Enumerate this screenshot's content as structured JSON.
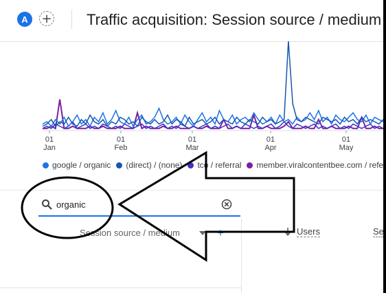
{
  "header": {
    "avatar_letter": "A",
    "add_comparison_symbol": "+",
    "title": "Traffic acquisition: Session source / medium"
  },
  "chart_data": {
    "type": "line",
    "x_ticks": [
      {
        "day": "01",
        "month": "Jan"
      },
      {
        "day": "01",
        "month": "Feb"
      },
      {
        "day": "01",
        "month": "Mar"
      },
      {
        "day": "01",
        "month": "Apr"
      },
      {
        "day": "01",
        "month": "May"
      }
    ],
    "series": [
      {
        "name": "google / organic",
        "color": "#1a73e8",
        "values": [
          3,
          4,
          2,
          5,
          3,
          6,
          2,
          4,
          7,
          3,
          5,
          2,
          6,
          4,
          8,
          3,
          5,
          9,
          4,
          3,
          6,
          2,
          5,
          7,
          3,
          4,
          6,
          10,
          5,
          3,
          4,
          6,
          3,
          7,
          4,
          2,
          5,
          8,
          4,
          6,
          3,
          9,
          5,
          4,
          7,
          3,
          5,
          6,
          4,
          8,
          5,
          3,
          4,
          6,
          3,
          7,
          4,
          5,
          3,
          6,
          4,
          5,
          8,
          5,
          9,
          4,
          6,
          3,
          7,
          5,
          4,
          6,
          8,
          5,
          4,
          7,
          3,
          6,
          5,
          4
        ]
      },
      {
        "name": "(direct) / (none)",
        "color": "#1557b0",
        "values": [
          2,
          3,
          5,
          2,
          4,
          3,
          6,
          3,
          2,
          5,
          3,
          7,
          4,
          3,
          5,
          2,
          4,
          3,
          6,
          5,
          3,
          4,
          2,
          6,
          4,
          3,
          5,
          3,
          4,
          7,
          3,
          5,
          4,
          2,
          6,
          3,
          4,
          5,
          3,
          4,
          6,
          3,
          5,
          4,
          3,
          6,
          4,
          3,
          5,
          4,
          3,
          6,
          4,
          5,
          3,
          4,
          5,
          40,
          12,
          5,
          4,
          6,
          5,
          4,
          3,
          6,
          5,
          4,
          5,
          3,
          6,
          4,
          5,
          3,
          6,
          4,
          5,
          4,
          3,
          5
        ]
      },
      {
        "name": "tco / referral",
        "color": "#3d33c4",
        "values": [
          1,
          2,
          1,
          3,
          2,
          1,
          2,
          4,
          1,
          2,
          3,
          1,
          2,
          1,
          3,
          2,
          1,
          2,
          1,
          3,
          2,
          1,
          2,
          3,
          1,
          2,
          1,
          2,
          3,
          1,
          2,
          1,
          3,
          2,
          1,
          2,
          1,
          2,
          3,
          1,
          2,
          1,
          2,
          3,
          1,
          2,
          1,
          3,
          2,
          1,
          2,
          1,
          2,
          3,
          1,
          2,
          4,
          2,
          1,
          3,
          2,
          1,
          2,
          3,
          1,
          2,
          1,
          2,
          3,
          1,
          2,
          1,
          3,
          2,
          1,
          2,
          3,
          1,
          2,
          1
        ]
      },
      {
        "name": "member.viralcontentbee.com / referral",
        "color": "#7b1fa2",
        "values": [
          1,
          1,
          2,
          1,
          14,
          1,
          1,
          2,
          1,
          1,
          1,
          2,
          1,
          1,
          2,
          1,
          1,
          1,
          2,
          1,
          1,
          1,
          8,
          1,
          2,
          1,
          1,
          1,
          2,
          1,
          1,
          2,
          1,
          1,
          1,
          2,
          1,
          1,
          2,
          1,
          1,
          1,
          5,
          1,
          1,
          2,
          1,
          1,
          1,
          7,
          1,
          1,
          2,
          1,
          1,
          1,
          2,
          4,
          1,
          1,
          1,
          2,
          1,
          1,
          5,
          1,
          1,
          2,
          1,
          1,
          1,
          2,
          1,
          1,
          6,
          1,
          1,
          2,
          1,
          1
        ]
      }
    ]
  },
  "search": {
    "value": "organic"
  },
  "table": {
    "dimension_header": "Session source / medium",
    "add_dimension_symbol": "+",
    "columns": [
      "Users",
      "Se"
    ]
  }
}
